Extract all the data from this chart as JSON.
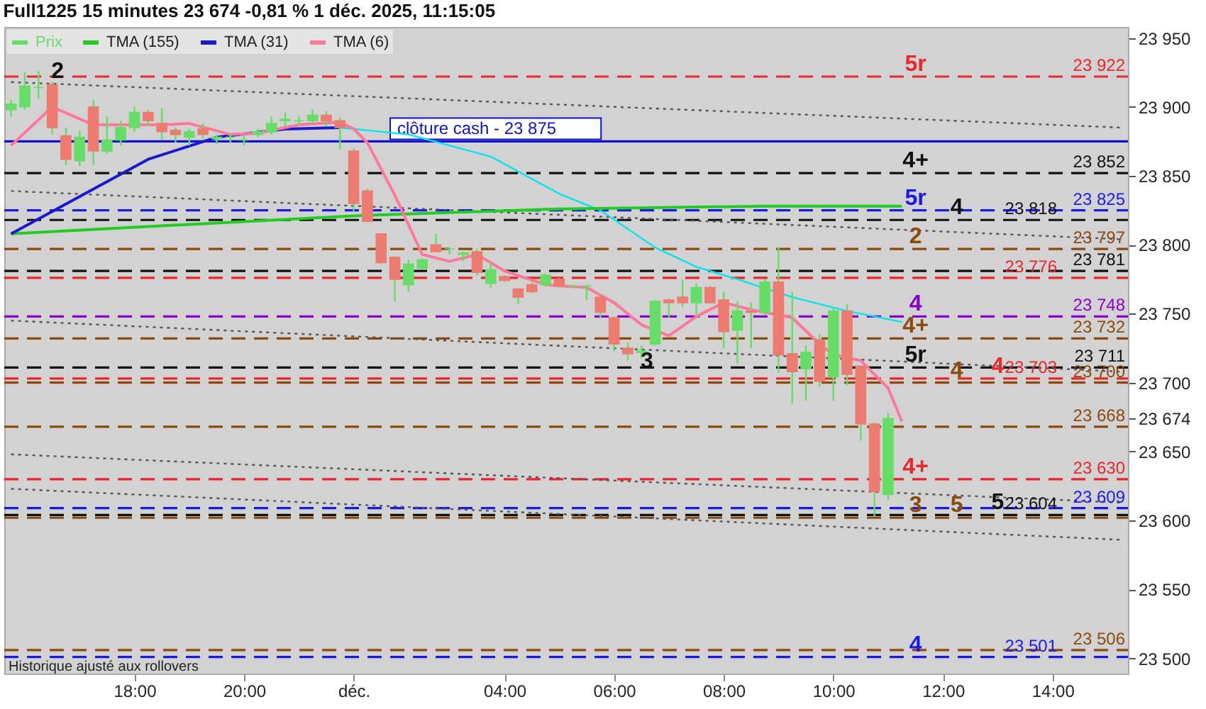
{
  "chart_data": {
    "type": "candlestick",
    "title": "Full1225 15 minutes 23 674 -0,81 % 1 déc. 2025, 11:15:05",
    "categories": [
      null,
      null,
      null,
      null,
      null,
      null,
      null,
      null,
      null,
      "18:00",
      null,
      null,
      null,
      null,
      null,
      null,
      null,
      "20:00",
      null,
      null,
      null,
      null,
      null,
      null,
      null,
      "déc.",
      null,
      null,
      null,
      null,
      null,
      null,
      null,
      null,
      null,
      null,
      "04:00",
      null,
      null,
      null,
      null,
      null,
      null,
      null,
      "06:00",
      null,
      null,
      null,
      null,
      null,
      null,
      null,
      "08:00",
      null,
      null,
      null,
      null,
      null,
      null,
      null,
      "10:00",
      null,
      null,
      null,
      null,
      null,
      null,
      null,
      "12:00",
      null,
      null,
      null,
      null,
      null,
      null,
      null,
      "14:00",
      null,
      null,
      null,
      null,
      null
    ],
    "series": [
      {
        "name": "Prix",
        "color": "#66dd66",
        "colors": [
          "#66dd66",
          "#66dd66",
          "#66dd66",
          "#ee7b70",
          "#ee7b70",
          "#66dd66",
          "#ee7b70",
          "#66dd66",
          "#66dd66",
          "#66dd66",
          "#ee7b70",
          "#ee7b70",
          "#ee7b70",
          "#66dd66",
          "#ee7b70",
          "#66dd66",
          "#66dd66",
          "#66dd66",
          "#66dd66",
          "#66dd66",
          "#66dd66",
          "#66dd66",
          "#66dd66",
          "#ee7b70",
          "#ee7b70",
          "#ee7b70",
          "#ee7b70",
          "#ee7b70",
          "#ee7b70",
          "#66dd66",
          "#66dd66",
          "#ee7b70",
          "#66dd66",
          "#66dd66",
          "#ee7b70",
          "#66dd66",
          "#ee7b70",
          "#ee7b70",
          "#ee7b70",
          "#66dd66",
          "#ee7b70",
          "#66dd66",
          "#66dd66",
          "#ee7b70",
          "#ee7b70",
          "#ee7b70",
          "#66dd66",
          "#66dd66",
          "#ee7b70",
          "#ee7b70",
          "#66dd66",
          "#ee7b70",
          "#ee7b70",
          "#66dd66",
          "#ee7b70",
          "#66dd66",
          "#ee7b70",
          "#ee7b70",
          "#66dd66",
          "#ee7b70",
          "#66dd66",
          "#ee7b70",
          "#ee7b70",
          "#ee7b70",
          "#66dd66",
          null,
          null,
          null,
          null,
          null,
          null,
          null,
          null,
          null,
          null,
          null,
          null,
          null,
          null,
          null,
          null,
          null
        ],
        "ohlc": [
          [
            23898,
            23905,
            23893,
            23902
          ],
          [
            23900,
            23925,
            23898,
            23915
          ],
          [
            23914,
            23926,
            23906,
            23914
          ],
          [
            23916,
            23918,
            23880,
            23885
          ],
          [
            23879,
            23885,
            23858,
            23862
          ],
          [
            23861,
            23883,
            23857,
            23878
          ],
          [
            23900,
            23905,
            23858,
            23868
          ],
          [
            23868,
            23893,
            23866,
            23876
          ],
          [
            23876,
            23890,
            23872,
            23885
          ],
          [
            23885,
            23900,
            23882,
            23896
          ],
          [
            23896,
            23898,
            23886,
            23890
          ],
          [
            23888,
            23899,
            23876,
            23882
          ],
          [
            23883,
            23885,
            23874,
            23880
          ],
          [
            23878,
            23884,
            23872,
            23882
          ],
          [
            23884,
            23888,
            23877,
            23880
          ],
          [
            23877,
            23880,
            23873,
            23878
          ],
          [
            23878,
            23881,
            23874,
            23878
          ],
          [
            23876,
            23879,
            23872,
            23876
          ],
          [
            23880,
            23884,
            23878,
            23882
          ],
          [
            23882,
            23893,
            23880,
            23888
          ],
          [
            23890,
            23896,
            23886,
            23891
          ],
          [
            23890,
            23893,
            23887,
            23890
          ],
          [
            23890,
            23898,
            23888,
            23894
          ],
          [
            23894,
            23897,
            23886,
            23890
          ],
          [
            23890,
            23892,
            23869,
            23885
          ],
          [
            23868,
            23870,
            23824,
            23830
          ],
          [
            23839,
            23841,
            23817,
            23817
          ],
          [
            23808,
            23808,
            23786,
            23787
          ],
          [
            23791,
            23792,
            23759,
            23775
          ],
          [
            23771,
            23789,
            23766,
            23786
          ],
          [
            23783,
            23790,
            23782,
            23789
          ],
          [
            23800,
            23808,
            23795,
            23795
          ],
          [
            23797,
            23798,
            23793,
            23797
          ],
          [
            23793,
            23795,
            23788,
            23794
          ],
          [
            23795,
            23797,
            23778,
            23780
          ],
          [
            23772,
            23787,
            23769,
            23782
          ],
          [
            23777,
            23778,
            23773,
            23774
          ],
          [
            23768,
            23768,
            23757,
            23762
          ],
          [
            23771,
            23773,
            23765,
            23766
          ],
          [
            23771,
            23779,
            23770,
            23778
          ],
          [
            23775,
            23776,
            23769,
            23770
          ],
          [
            23770,
            23771,
            23769,
            23770
          ],
          [
            23770,
            23771,
            23760,
            23770
          ],
          [
            23762,
            23763,
            23747,
            23751
          ],
          [
            23747,
            23748,
            23723,
            23728
          ],
          [
            23725,
            23729,
            23716,
            23721
          ],
          [
            23722,
            23727,
            23718,
            23723
          ],
          [
            23728,
            23760,
            23727,
            23759
          ],
          [
            23760,
            23761,
            23747,
            23758
          ],
          [
            23762,
            23775,
            23755,
            23758
          ],
          [
            23758,
            23772,
            23748,
            23769
          ],
          [
            23769,
            23770,
            23757,
            23758
          ],
          [
            23760,
            23766,
            23725,
            23737
          ],
          [
            23738,
            23759,
            23714,
            23752
          ],
          [
            23752,
            23758,
            23725,
            23751
          ],
          [
            23751,
            23775,
            23749,
            23773
          ],
          [
            23773,
            23798,
            23707,
            23720
          ],
          [
            23721,
            23766,
            23685,
            23708
          ],
          [
            23710,
            23727,
            23687,
            23722
          ],
          [
            23731,
            23735,
            23697,
            23701
          ],
          [
            23704,
            23754,
            23687,
            23752
          ],
          [
            23752,
            23757,
            23698,
            23706
          ],
          [
            23712,
            23712,
            23658,
            23670
          ],
          [
            23670,
            23671,
            23603,
            23621
          ],
          [
            23619,
            23678,
            23615,
            23674
          ],
          null,
          null,
          null,
          null,
          null,
          null,
          null,
          null,
          null,
          null,
          null,
          null,
          null,
          null,
          null,
          null,
          null
        ]
      },
      {
        "type": "line",
        "color": "#555555",
        "line_style": "dotted",
        "values": [
          23918,
          null,
          null,
          null,
          null,
          null,
          null,
          null,
          null,
          null,
          null,
          null,
          null,
          null,
          null,
          null,
          null,
          null,
          null,
          null,
          null,
          null,
          null,
          null,
          null,
          null,
          null,
          null,
          null,
          null,
          null,
          null,
          null,
          null,
          null,
          null,
          null,
          null,
          null,
          null,
          null,
          null,
          null,
          null,
          null,
          null,
          null,
          null,
          null,
          null,
          null,
          null,
          null,
          null,
          null,
          null,
          null,
          null,
          null,
          null,
          null,
          null,
          null,
          null,
          null,
          null,
          null,
          null,
          null,
          null,
          null,
          null,
          null,
          null,
          null,
          null,
          null,
          null,
          null,
          null,
          null,
          23885
        ]
      },
      {
        "type": "line",
        "color": "#555555",
        "line_style": "dotted",
        "values": [
          23839,
          null,
          null,
          null,
          null,
          null,
          null,
          null,
          null,
          null,
          null,
          null,
          null,
          null,
          null,
          null,
          null,
          null,
          null,
          null,
          null,
          null,
          null,
          null,
          null,
          null,
          null,
          null,
          null,
          null,
          null,
          null,
          null,
          null,
          null,
          null,
          null,
          null,
          null,
          null,
          null,
          null,
          null,
          null,
          null,
          null,
          null,
          null,
          null,
          null,
          null,
          null,
          null,
          null,
          null,
          null,
          null,
          null,
          null,
          null,
          null,
          null,
          null,
          null,
          null,
          null,
          null,
          null,
          null,
          null,
          null,
          null,
          null,
          null,
          null,
          null,
          null,
          null,
          null,
          null,
          null,
          23804
        ]
      },
      {
        "type": "line",
        "color": "#555555",
        "line_style": "dotted",
        "values": [
          23745,
          null,
          null,
          null,
          null,
          null,
          null,
          null,
          null,
          null,
          null,
          null,
          null,
          null,
          null,
          null,
          null,
          null,
          null,
          null,
          null,
          null,
          null,
          null,
          null,
          null,
          null,
          null,
          null,
          null,
          null,
          null,
          null,
          null,
          null,
          null,
          null,
          null,
          null,
          null,
          null,
          null,
          null,
          null,
          null,
          null,
          null,
          null,
          null,
          null,
          null,
          null,
          null,
          null,
          null,
          null,
          null,
          null,
          null,
          null,
          null,
          null,
          null,
          null,
          null,
          null,
          null,
          null,
          null,
          null,
          null,
          null,
          null,
          null,
          null,
          null,
          null,
          null,
          null,
          null,
          null,
          23708
        ]
      },
      {
        "type": "line",
        "color": "#555555",
        "line_style": "dotted",
        "values": [
          23648,
          null,
          null,
          null,
          null,
          null,
          null,
          null,
          null,
          null,
          null,
          null,
          null,
          null,
          null,
          null,
          null,
          null,
          null,
          null,
          null,
          null,
          null,
          null,
          null,
          null,
          null,
          null,
          null,
          null,
          null,
          null,
          null,
          null,
          null,
          null,
          null,
          null,
          null,
          null,
          null,
          null,
          null,
          null,
          null,
          null,
          null,
          null,
          null,
          null,
          null,
          null,
          null,
          null,
          null,
          null,
          null,
          null,
          null,
          null,
          null,
          null,
          null,
          null,
          null,
          null,
          null,
          null,
          null,
          null,
          null,
          null,
          null,
          null,
          null,
          null,
          null,
          null,
          null,
          null,
          null,
          23613
        ]
      },
      {
        "type": "line",
        "color": "#555555",
        "line_style": "dotted",
        "values": [
          23623,
          null,
          null,
          null,
          null,
          null,
          null,
          null,
          null,
          null,
          null,
          null,
          null,
          null,
          null,
          null,
          null,
          null,
          null,
          null,
          null,
          null,
          null,
          null,
          null,
          null,
          null,
          null,
          null,
          null,
          null,
          null,
          null,
          null,
          null,
          null,
          null,
          null,
          null,
          null,
          null,
          null,
          null,
          null,
          null,
          null,
          null,
          null,
          null,
          null,
          null,
          null,
          null,
          null,
          null,
          null,
          null,
          null,
          null,
          null,
          null,
          null,
          null,
          null,
          null,
          null,
          null,
          null,
          null,
          null,
          null,
          null,
          null,
          null,
          null,
          null,
          null,
          null,
          null,
          null,
          null,
          23586
        ]
      },
      {
        "name": "TMA (155)",
        "type": "line",
        "color": "#22cc22",
        "values": [
          23808,
          null,
          null,
          null,
          null,
          null,
          null,
          null,
          null,
          null,
          null,
          null,
          null,
          null,
          null,
          null,
          null,
          null,
          null,
          null,
          null,
          null,
          null,
          null,
          null,
          23821,
          null,
          null,
          null,
          null,
          null,
          null,
          null,
          null,
          null,
          null,
          null,
          null,
          null,
          null,
          23826,
          null,
          null,
          null,
          null,
          null,
          null,
          null,
          null,
          null,
          null,
          null,
          null,
          null,
          null,
          23828,
          null,
          null,
          null,
          null,
          null,
          null,
          null,
          null,
          null,
          23828,
          null,
          null,
          null,
          null,
          null,
          null,
          null,
          null,
          null,
          null,
          null,
          null,
          null,
          null,
          null,
          null
        ]
      },
      {
        "name": "TMA (31)",
        "type": "line",
        "color": "#1a1acc",
        "values": [
          23808,
          null,
          null,
          null,
          null,
          23835,
          null,
          null,
          null,
          null,
          23862,
          null,
          null,
          null,
          null,
          23878,
          null,
          null,
          null,
          null,
          23884,
          null,
          null,
          null,
          23885,
          null,
          null,
          null,
          null,
          null,
          null,
          null,
          null,
          null,
          null,
          null,
          null,
          null,
          null,
          null,
          null,
          null,
          null,
          null,
          null,
          null,
          null,
          null,
          null,
          null,
          null,
          null,
          null,
          null,
          null,
          null,
          null,
          null,
          null,
          null,
          null,
          null,
          null,
          null,
          null,
          null,
          null,
          null,
          null,
          null,
          null,
          null,
          null,
          null,
          null,
          null,
          null,
          null,
          null,
          null,
          null,
          null
        ]
      },
      {
        "type": "line",
        "color": "#00e5ee",
        "values": [
          null,
          null,
          null,
          null,
          null,
          null,
          null,
          null,
          null,
          null,
          null,
          null,
          null,
          null,
          null,
          null,
          null,
          null,
          null,
          null,
          null,
          null,
          null,
          null,
          23885,
          null,
          null,
          null,
          null,
          23880,
          null,
          null,
          null,
          null,
          null,
          23864,
          null,
          null,
          null,
          null,
          23837,
          null,
          null,
          23825,
          null,
          null,
          null,
          23798,
          null,
          null,
          23784,
          null,
          null,
          23775,
          null,
          null,
          null,
          23762,
          null,
          null,
          null,
          23752,
          null,
          null,
          null,
          23744,
          null,
          null,
          null,
          null,
          null,
          null,
          null,
          null,
          null,
          null,
          null,
          null,
          null,
          null,
          null,
          null
        ]
      },
      {
        "name": "TMA (6)",
        "type": "line",
        "color": "#ff7799",
        "values": [
          23872,
          null,
          null,
          23900,
          null,
          null,
          23887,
          null,
          null,
          null,
          null,
          23887,
          null,
          23888,
          null,
          null,
          23880,
          null,
          23881,
          null,
          null,
          23887,
          null,
          null,
          23889,
          23884,
          23874,
          null,
          23836,
          null,
          23793,
          null,
          23788,
          null,
          23793,
          null,
          23781,
          null,
          null,
          23771,
          null,
          null,
          23769,
          null,
          23758,
          null,
          23742,
          null,
          23734,
          null,
          23748,
          null,
          23758,
          null,
          23753,
          null,
          null,
          23747,
          null,
          23728,
          23720,
          null,
          23716,
          null,
          23696,
          23672,
          null,
          null,
          null,
          null,
          null,
          null,
          null,
          null,
          null,
          null,
          null,
          null,
          null,
          null,
          null,
          null
        ]
      }
    ],
    "ylim": [
      23489,
      23958
    ],
    "yticks": [
      {
        "value": 23500,
        "label": "23 500"
      },
      {
        "value": 23550,
        "label": "23 550"
      },
      {
        "value": 23600,
        "label": "23 600"
      },
      {
        "value": 23650,
        "label": "23 650"
      },
      {
        "value": 23674,
        "label": "23 674"
      },
      {
        "value": 23700,
        "label": "23 700"
      },
      {
        "value": 23750,
        "label": "23 750"
      },
      {
        "value": 23800,
        "label": "23 800"
      },
      {
        "value": 23850,
        "label": "23 850"
      },
      {
        "value": 23900,
        "label": "23 900"
      },
      {
        "value": 23950,
        "label": "23 950"
      }
    ],
    "ref_lines": [
      {
        "axis": "y",
        "value": 23922,
        "label": "23 922",
        "color": "#e8262b",
        "line_style": "dashed"
      },
      {
        "axis": "y",
        "value": 23875,
        "label": "clôture cash - 23 875",
        "color": "#1010d0",
        "line_style": "solid"
      },
      {
        "axis": "y",
        "value": 23852,
        "label": "23 852",
        "color": "#111111",
        "line_style": "dashed"
      },
      {
        "axis": "y",
        "value": 23825,
        "label": "23 825",
        "color": "#1a1ae6",
        "line_style": "dashed"
      },
      {
        "axis": "y",
        "value": 23818,
        "label": "23 818",
        "color": "#111111",
        "line_style": "dashed"
      },
      {
        "axis": "y",
        "value": 23797,
        "label": "23 797",
        "color": "#8b4a0c",
        "line_style": "dashed"
      },
      {
        "axis": "y",
        "value": 23781,
        "label": "23 781",
        "color": "#111111",
        "line_style": "dashed"
      },
      {
        "axis": "y",
        "value": 23776,
        "label": "23 776",
        "color": "#e8262b",
        "line_style": "dashed"
      },
      {
        "axis": "y",
        "value": 23748,
        "label": "23 748",
        "color": "#8a00c8",
        "line_style": "dashed"
      },
      {
        "axis": "y",
        "value": 23732,
        "label": "23 732",
        "color": "#8b4a0c",
        "line_style": "dashed"
      },
      {
        "axis": "y",
        "value": 23711,
        "label": "23 711",
        "color": "#111111",
        "line_style": "dashed"
      },
      {
        "axis": "y",
        "value": 23703,
        "label": "23 703",
        "color": "#e8262b",
        "line_style": "dashed"
      },
      {
        "axis": "y",
        "value": 23700,
        "label": "23 700",
        "color": "#8b4a0c",
        "line_style": "dashed"
      },
      {
        "axis": "y",
        "value": 23668,
        "label": "23 668",
        "color": "#8b4a0c",
        "line_style": "dashed"
      },
      {
        "axis": "y",
        "value": 23630,
        "label": "23 630",
        "color": "#e8262b",
        "line_style": "dashed"
      },
      {
        "axis": "y",
        "value": 23609,
        "label": "23 609",
        "color": "#1a1ae6",
        "line_style": "dashed"
      },
      {
        "axis": "y",
        "value": 23604,
        "label": "23 604",
        "color": "#111111",
        "line_style": "dashed"
      },
      {
        "axis": "y",
        "value": 23602,
        "label": null,
        "color": "#8b4a0c",
        "line_style": "dashed"
      },
      {
        "axis": "y",
        "value": 23506,
        "label": "23 506",
        "color": "#8b4a0c",
        "line_style": "dashed"
      },
      {
        "axis": "y",
        "value": 23501,
        "label": "23 501",
        "color": "#1a1ae6",
        "line_style": "dashed"
      }
    ],
    "annotations": [
      {
        "text": "2",
        "y": 23926
      },
      {
        "text": "5r",
        "y": 23922
      },
      {
        "text": "4+",
        "y": 23852
      },
      {
        "text": "5r",
        "y": 23825
      },
      {
        "text": "4",
        "y": 23818
      },
      {
        "text": "2",
        "y": 23797
      },
      {
        "text": "4",
        "y": 23748
      },
      {
        "text": "4+",
        "y": 23732
      },
      {
        "text": "5r",
        "y": 23711
      },
      {
        "text": "4",
        "y": 23700
      },
      {
        "text": "4",
        "y": 23703
      },
      {
        "text": "3",
        "y": 23716
      },
      {
        "text": "4+",
        "y": 23630
      },
      {
        "text": "3",
        "y": 23602
      },
      {
        "text": "5",
        "y": 23602
      },
      {
        "text": "5",
        "y": 23604
      },
      {
        "text": "4",
        "y": 23501
      },
      "Historique ajusté aux rollovers"
    ],
    "legend": "top left"
  }
}
